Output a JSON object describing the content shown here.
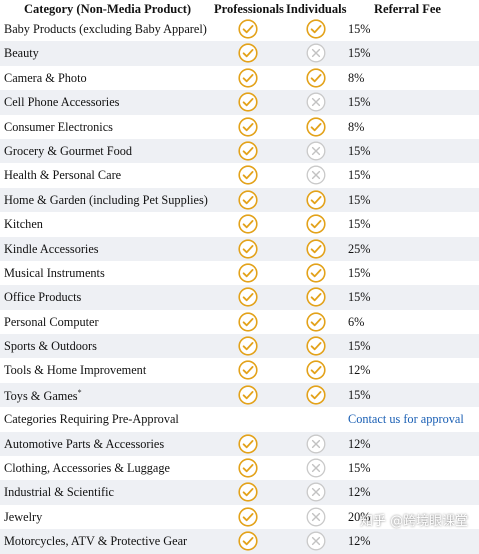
{
  "header": {
    "category": "Category (Non-Media Product)",
    "professionals": "Professionals",
    "individuals": "Individuals",
    "referral_fee": "Referral Fee"
  },
  "colors": {
    "check": "#e3a21a",
    "cross": "#c2c2c2",
    "link": "#1a5fb4",
    "alt_row": "#eef0f4"
  },
  "icons": {
    "yes": "check-circle-icon",
    "no": "x-circle-icon"
  },
  "rows": [
    {
      "category": "Baby Products (excluding Baby Apparel)",
      "pro": true,
      "ind": true,
      "fee": "15%"
    },
    {
      "category": "Beauty",
      "pro": true,
      "ind": false,
      "fee": "15%"
    },
    {
      "category": "Camera & Photo",
      "pro": true,
      "ind": true,
      "fee": "8%"
    },
    {
      "category": "Cell Phone Accessories",
      "pro": true,
      "ind": false,
      "fee": "15%"
    },
    {
      "category": "Consumer Electronics",
      "pro": true,
      "ind": true,
      "fee": "8%"
    },
    {
      "category": "Grocery & Gourmet Food",
      "pro": true,
      "ind": false,
      "fee": "15%"
    },
    {
      "category": "Health & Personal Care",
      "pro": true,
      "ind": false,
      "fee": "15%"
    },
    {
      "category": "Home & Garden (including Pet Supplies)",
      "pro": true,
      "ind": true,
      "fee": "15%"
    },
    {
      "category": "Kitchen",
      "pro": true,
      "ind": true,
      "fee": "15%"
    },
    {
      "category": "Kindle Accessories",
      "pro": true,
      "ind": true,
      "fee": "25%"
    },
    {
      "category": "Musical Instruments",
      "pro": true,
      "ind": true,
      "fee": "15%"
    },
    {
      "category": "Office Products",
      "pro": true,
      "ind": true,
      "fee": "15%"
    },
    {
      "category": "Personal Computer",
      "pro": true,
      "ind": true,
      "fee": "6%"
    },
    {
      "category": "Sports & Outdoors",
      "pro": true,
      "ind": true,
      "fee": "15%"
    },
    {
      "category": "Tools & Home Improvement",
      "pro": true,
      "ind": true,
      "fee": "12%"
    },
    {
      "category": "Toys & Games",
      "sup": "*",
      "pro": true,
      "ind": true,
      "fee": "15%"
    },
    {
      "category": "Categories Requiring Pre-Approval",
      "section": true,
      "fee": "Contact us for approval",
      "link": true
    },
    {
      "category": "Automotive Parts & Accessories",
      "pro": true,
      "ind": false,
      "fee": "12%"
    },
    {
      "category": "Clothing, Accessories & Luggage",
      "pro": true,
      "ind": false,
      "fee": "15%"
    },
    {
      "category": "Industrial & Scientific",
      "pro": true,
      "ind": false,
      "fee": "12%"
    },
    {
      "category": "Jewelry",
      "pro": true,
      "ind": false,
      "fee": "20%"
    },
    {
      "category": "Motorcycles, ATV & Protective Gear",
      "pro": true,
      "ind": false,
      "fee": "12%"
    }
  ],
  "watermark": "知乎 @跨境眼课堂"
}
